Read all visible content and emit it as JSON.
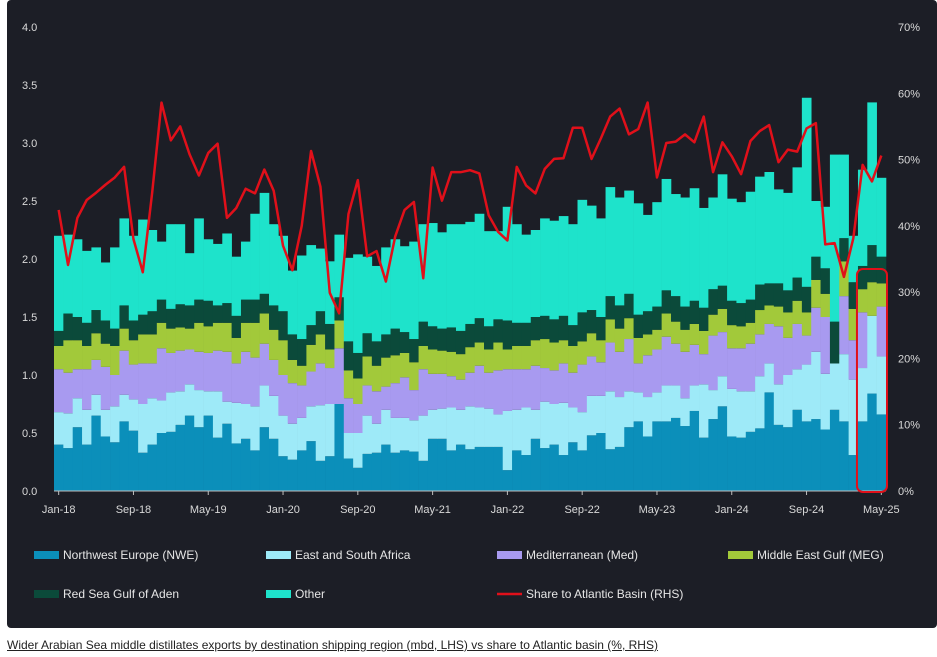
{
  "caption": "Wider Arabian Sea middle distillates exports by destination shipping region (mbd, LHS) vs share to Atlantic basin (%, RHS)",
  "chart_data": {
    "type": "bar",
    "stacked": true,
    "title": "",
    "xlabel": "",
    "ylabel": "",
    "ylim": [
      0,
      4.0
    ],
    "y2lim": [
      0,
      70
    ],
    "yticks": [
      "0.0",
      "0.5",
      "1.0",
      "1.5",
      "2.0",
      "2.5",
      "3.0",
      "3.5",
      "4.0"
    ],
    "y2ticks": [
      "0%",
      "10%",
      "20%",
      "30%",
      "40%",
      "50%",
      "60%",
      "70%"
    ],
    "xticks": [
      {
        "label": "Jan-18",
        "index": 0
      },
      {
        "label": "Sep-18",
        "index": 8
      },
      {
        "label": "May-19",
        "index": 16
      },
      {
        "label": "Jan-20",
        "index": 24
      },
      {
        "label": "Sep-20",
        "index": 32
      },
      {
        "label": "May-21",
        "index": 40
      },
      {
        "label": "Jan-22",
        "index": 48
      },
      {
        "label": "Sep-22",
        "index": 56
      },
      {
        "label": "May-23",
        "index": 64
      },
      {
        "label": "Jan-24",
        "index": 72
      },
      {
        "label": "Sep-24",
        "index": 80
      },
      {
        "label": "May-25",
        "index": 88
      }
    ],
    "legend_placement": "bottom",
    "grid": false,
    "highlight": {
      "from_index": 86,
      "to_index": 88,
      "color": "#e0101a"
    },
    "series": [
      {
        "name": "Northwest Europe (NWE)",
        "color": "#0b8fba",
        "values": [
          0.4,
          0.37,
          0.55,
          0.4,
          0.65,
          0.47,
          0.42,
          0.6,
          0.52,
          0.33,
          0.4,
          0.5,
          0.51,
          0.57,
          0.65,
          0.55,
          0.65,
          0.46,
          0.58,
          0.41,
          0.45,
          0.35,
          0.55,
          0.45,
          0.3,
          0.27,
          0.35,
          0.43,
          0.26,
          0.3,
          0.75,
          0.28,
          0.2,
          0.32,
          0.33,
          0.4,
          0.33,
          0.35,
          0.34,
          0.26,
          0.45,
          0.45,
          0.35,
          0.4,
          0.36,
          0.38,
          0.38,
          0.38,
          0.18,
          0.35,
          0.31,
          0.45,
          0.37,
          0.4,
          0.31,
          0.42,
          0.35,
          0.48,
          0.5,
          0.36,
          0.38,
          0.55,
          0.6,
          0.47,
          0.6,
          0.6,
          0.63,
          0.56,
          0.69,
          0.46,
          0.62,
          0.73,
          0.47,
          0.46,
          0.51,
          0.54,
          0.85,
          0.57,
          0.55,
          0.7,
          0.6,
          0.62,
          0.53,
          0.7,
          0.6,
          0.31,
          0.6,
          0.84,
          0.66
        ]
      },
      {
        "name": "East and South Africa",
        "color": "#9eeaf8",
        "values": [
          0.28,
          0.3,
          0.25,
          0.3,
          0.18,
          0.23,
          0.31,
          0.23,
          0.27,
          0.42,
          0.4,
          0.28,
          0.34,
          0.29,
          0.27,
          0.32,
          0.21,
          0.4,
          0.19,
          0.35,
          0.3,
          0.38,
          0.36,
          0.37,
          0.35,
          0.31,
          0.28,
          0.3,
          0.48,
          0.45,
          0.0,
          0.22,
          0.3,
          0.33,
          0.25,
          0.3,
          0.3,
          0.28,
          0.27,
          0.39,
          0.25,
          0.26,
          0.37,
          0.3,
          0.37,
          0.34,
          0.33,
          0.28,
          0.51,
          0.35,
          0.41,
          0.25,
          0.4,
          0.35,
          0.45,
          0.3,
          0.33,
          0.34,
          0.32,
          0.5,
          0.43,
          0.31,
          0.25,
          0.34,
          0.25,
          0.31,
          0.28,
          0.24,
          0.22,
          0.46,
          0.25,
          0.26,
          0.41,
          0.4,
          0.35,
          0.45,
          0.25,
          0.35,
          0.45,
          0.35,
          0.49,
          0.58,
          0.48,
          0.4,
          0.58,
          0.65,
          0.46,
          0.67,
          0.5
        ]
      },
      {
        "name": "Mediterranean (Med)",
        "color": "#a89af0",
        "values": [
          0.37,
          0.35,
          0.25,
          0.35,
          0.3,
          0.37,
          0.27,
          0.38,
          0.3,
          0.35,
          0.3,
          0.45,
          0.34,
          0.35,
          0.3,
          0.33,
          0.33,
          0.35,
          0.43,
          0.34,
          0.45,
          0.42,
          0.36,
          0.31,
          0.35,
          0.35,
          0.28,
          0.3,
          0.36,
          0.31,
          0.48,
          0.3,
          0.25,
          0.26,
          0.28,
          0.2,
          0.3,
          0.35,
          0.26,
          0.4,
          0.31,
          0.3,
          0.27,
          0.26,
          0.29,
          0.36,
          0.31,
          0.38,
          0.36,
          0.35,
          0.33,
          0.38,
          0.29,
          0.29,
          0.34,
          0.3,
          0.41,
          0.34,
          0.29,
          0.42,
          0.39,
          0.45,
          0.25,
          0.36,
          0.37,
          0.42,
          0.36,
          0.4,
          0.35,
          0.26,
          0.47,
          0.38,
          0.35,
          0.37,
          0.41,
          0.36,
          0.34,
          0.5,
          0.32,
          0.39,
          0.25,
          0.38,
          0.49,
          0.0,
          0.5,
          0.34,
          0.48,
          0.0,
          0.43
        ]
      },
      {
        "name": "Middle East Gulf (MEG)",
        "color": "#a2c93a",
        "values": [
          0.2,
          0.28,
          0.25,
          0.2,
          0.23,
          0.2,
          0.25,
          0.19,
          0.21,
          0.25,
          0.25,
          0.22,
          0.21,
          0.2,
          0.18,
          0.25,
          0.23,
          0.24,
          0.25,
          0.22,
          0.25,
          0.3,
          0.26,
          0.26,
          0.3,
          0.2,
          0.17,
          0.23,
          0.25,
          0.16,
          0.24,
          0.24,
          0.22,
          0.25,
          0.22,
          0.25,
          0.24,
          0.21,
          0.24,
          0.2,
          0.21,
          0.2,
          0.21,
          0.22,
          0.22,
          0.2,
          0.2,
          0.24,
          0.17,
          0.2,
          0.2,
          0.22,
          0.25,
          0.24,
          0.2,
          0.23,
          0.2,
          0.2,
          0.19,
          0.2,
          0.2,
          0.18,
          0.22,
          0.18,
          0.17,
          0.2,
          0.19,
          0.19,
          0.18,
          0.2,
          0.18,
          0.2,
          0.2,
          0.19,
          0.18,
          0.21,
          0.16,
          0.17,
          0.22,
          0.2,
          0.2,
          0.24,
          0.2,
          0.0,
          0.3,
          0.27,
          0.2,
          0.29,
          0.2
        ]
      },
      {
        "name": "Red Sea Gulf of Aden",
        "color": "#0b4a3a",
        "values": [
          0.13,
          0.23,
          0.2,
          0.2,
          0.2,
          0.2,
          0.15,
          0.2,
          0.17,
          0.17,
          0.2,
          0.2,
          0.17,
          0.2,
          0.2,
          0.2,
          0.22,
          0.15,
          0.17,
          0.19,
          0.2,
          0.2,
          0.17,
          0.21,
          0.25,
          0.22,
          0.23,
          0.17,
          0.2,
          0.22,
          0.2,
          0.25,
          0.22,
          0.2,
          0.21,
          0.2,
          0.23,
          0.18,
          0.2,
          0.21,
          0.2,
          0.19,
          0.21,
          0.2,
          0.2,
          0.21,
          0.2,
          0.2,
          0.25,
          0.2,
          0.2,
          0.2,
          0.2,
          0.2,
          0.21,
          0.18,
          0.25,
          0.2,
          0.2,
          0.2,
          0.2,
          0.21,
          0.2,
          0.2,
          0.2,
          0.2,
          0.22,
          0.2,
          0.2,
          0.2,
          0.22,
          0.2,
          0.21,
          0.2,
          0.2,
          0.22,
          0.19,
          0.2,
          0.19,
          0.2,
          0.22,
          0.2,
          0.22,
          0.36,
          0.2,
          0.23,
          0.2,
          0.32,
          0.23
        ]
      },
      {
        "name": "Other",
        "color": "#1ee3cb",
        "values": [
          0.82,
          0.68,
          0.67,
          0.62,
          0.54,
          0.5,
          0.7,
          0.75,
          0.73,
          0.82,
          0.7,
          0.5,
          0.73,
          0.69,
          0.45,
          0.7,
          0.53,
          0.53,
          0.6,
          0.51,
          0.5,
          0.74,
          0.87,
          0.7,
          0.65,
          0.55,
          0.72,
          0.69,
          0.54,
          0.54,
          0.54,
          0.72,
          0.85,
          0.66,
          0.65,
          0.75,
          0.77,
          0.74,
          0.84,
          0.84,
          0.89,
          0.83,
          0.89,
          0.92,
          0.88,
          0.9,
          0.82,
          0.76,
          0.98,
          0.85,
          0.76,
          0.75,
          0.84,
          0.85,
          0.86,
          0.87,
          0.97,
          0.9,
          0.85,
          0.94,
          0.93,
          0.89,
          0.96,
          0.83,
          0.9,
          0.96,
          0.88,
          0.94,
          0.97,
          0.86,
          0.79,
          0.96,
          0.88,
          0.87,
          0.93,
          0.93,
          0.96,
          0.81,
          0.84,
          0.95,
          1.63,
          0.48,
          0.53,
          1.44,
          0.72,
          0.4,
          0.83,
          1.23,
          0.68
        ]
      },
      {
        "name": "Share to Atlantic Basin (RHS)",
        "color": "#e0101a",
        "type": "line",
        "axis": "right",
        "values": [
          42.4,
          34.1,
          41.2,
          43.9,
          45.0,
          46.2,
          47.3,
          48.9,
          38.0,
          33.0,
          45.0,
          58.6,
          52.9,
          55.0,
          50.8,
          47.6,
          51.0,
          52.4,
          41.2,
          42.7,
          45.6,
          44.9,
          48.5,
          45.3,
          37.0,
          33.3,
          40.0,
          51.3,
          45.9,
          29.9,
          26.8,
          41.8,
          46.9,
          35.4,
          36.2,
          31.6,
          38.4,
          42.4,
          43.6,
          32.1,
          48.8,
          43.8,
          48.1,
          48.1,
          48.4,
          47.9,
          41.6,
          39.1,
          37.8,
          48.9,
          46.1,
          44.9,
          48.6,
          50.1,
          50.2,
          54.8,
          54.8,
          50.1,
          53.2,
          56.5,
          57.7,
          53.8,
          54.6,
          58.6,
          47.3,
          52.5,
          52.7,
          53.8,
          52.6,
          56.5,
          48.1,
          52.6,
          50.5,
          47.8,
          52.8,
          54.3,
          55.2,
          49.6,
          51.5,
          51.2,
          54.7,
          55.5,
          37.2,
          37.4,
          32.3,
          38.1,
          49.2,
          46.7,
          50.6
        ]
      }
    ]
  }
}
